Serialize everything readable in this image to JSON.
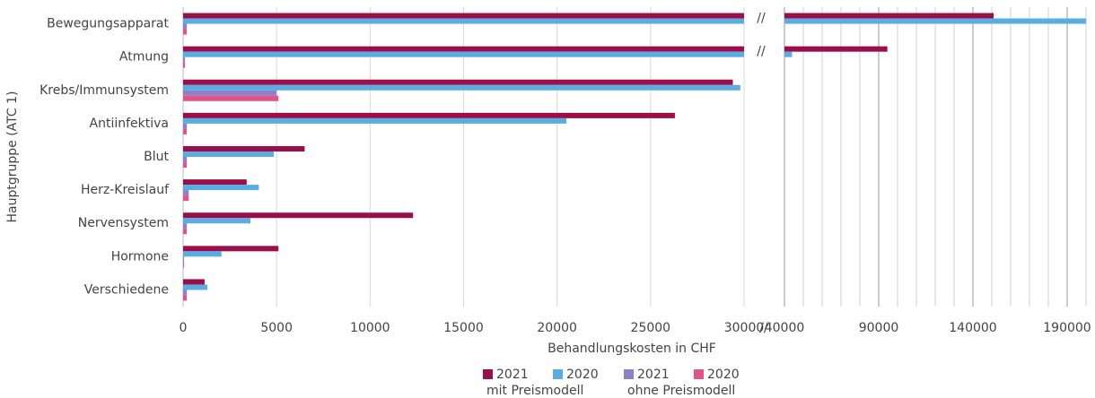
{
  "chart_data": {
    "type": "bar",
    "orientation": "horizontal",
    "ylabel": "Hauptgruppe (ATC 1)",
    "xlabel": "Behandlungskosten in CHF",
    "categories": [
      "Bewegungsapparat",
      "Atmung",
      "Krebs/Immunsystem",
      "Antiinfektiva",
      "Blut",
      "Herz-Kreislauf",
      "Nervensystem",
      "Hormone",
      "Verschiedene"
    ],
    "series": [
      {
        "name": "2021",
        "color": "#9b0e4a",
        "values": [
          151000,
          94600,
          29400,
          26300,
          6500,
          3400,
          12300,
          5100,
          1150
        ]
      },
      {
        "name": "2020",
        "color": "#5aade0",
        "values": [
          200000,
          44000,
          29800,
          20500,
          4850,
          4050,
          3600,
          2050,
          1300
        ]
      },
      {
        "name": "2021",
        "color": "#8e7fc9",
        "values": [
          200,
          100,
          5000,
          200,
          200,
          300,
          200,
          50,
          200
        ]
      },
      {
        "name": "2020",
        "color": "#e2538a",
        "values": [
          200,
          100,
          5100,
          200,
          200,
          300,
          200,
          50,
          200
        ]
      }
    ],
    "legend_groups": [
      "mit Preismodell",
      "ohne Preismodell"
    ],
    "xlim": [
      0,
      30000
    ],
    "xticks": [
      0,
      5000,
      10000,
      15000,
      20000,
      25000,
      30000
    ],
    "x2lim": [
      40000,
      200000
    ],
    "x2ticks": [
      40000,
      90000,
      140000,
      190000
    ],
    "x2minorticks": [
      50000,
      60000,
      70000,
      80000,
      100000,
      110000,
      120000,
      130000,
      150000,
      160000,
      170000,
      180000,
      200000
    ],
    "grid": true
  }
}
